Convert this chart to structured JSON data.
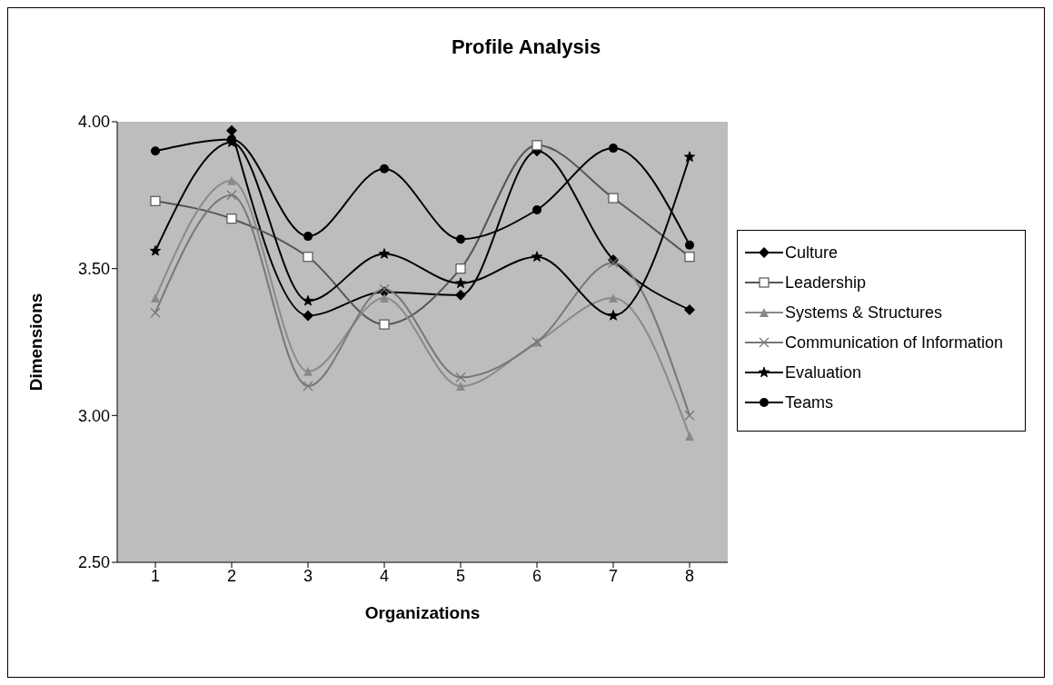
{
  "chart_data": {
    "type": "line",
    "title": "Profile Analysis",
    "xlabel": "Organizations",
    "ylabel": "Dimensions",
    "categories": [
      "1",
      "2",
      "3",
      "4",
      "5",
      "6",
      "7",
      "8"
    ],
    "series": [
      {
        "name": "Culture",
        "color": "#000000",
        "marker": "diamond",
        "values": [
          null,
          3.97,
          3.34,
          3.42,
          3.41,
          3.9,
          3.53,
          3.36
        ]
      },
      {
        "name": "Leadership",
        "color": "#555555",
        "marker": "square",
        "values": [
          3.73,
          3.67,
          3.54,
          3.31,
          3.5,
          3.92,
          3.74,
          3.54
        ]
      },
      {
        "name": "Systems & Structures",
        "color": "#8a8a8a",
        "marker": "triangle",
        "values": [
          3.4,
          3.8,
          3.15,
          3.4,
          3.1,
          3.25,
          3.4,
          2.93
        ]
      },
      {
        "name": "Communication of Information",
        "color": "#777777",
        "marker": "cross",
        "values": [
          3.35,
          3.75,
          3.1,
          3.43,
          3.13,
          3.25,
          3.52,
          3.0
        ]
      },
      {
        "name": "Evaluation",
        "color": "#000000",
        "marker": "star",
        "values": [
          3.56,
          3.93,
          3.39,
          3.55,
          3.45,
          3.54,
          3.34,
          3.88
        ]
      },
      {
        "name": "Teams",
        "color": "#000000",
        "marker": "circle",
        "values": [
          3.9,
          3.94,
          3.61,
          3.84,
          3.6,
          3.7,
          3.91,
          3.58
        ]
      }
    ],
    "ylim": [
      2.5,
      4.0
    ],
    "yticks": [
      {
        "value": 2.5,
        "label": "2.50"
      },
      {
        "value": 3.0,
        "label": "3.00"
      },
      {
        "value": 3.5,
        "label": "3.50"
      },
      {
        "value": 4.0,
        "label": "4.00"
      }
    ],
    "grid": false,
    "legend": "right",
    "line_style": "solid"
  }
}
